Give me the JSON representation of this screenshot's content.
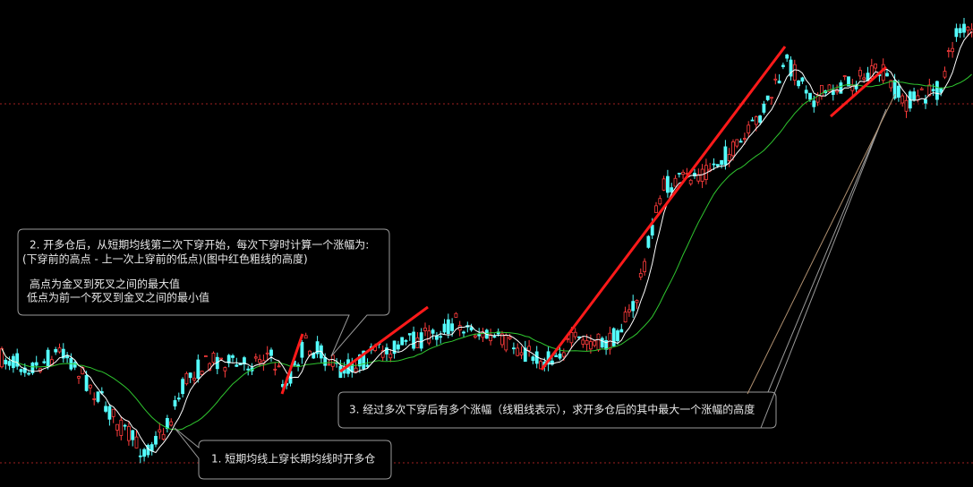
{
  "annotations": [
    {
      "lines": [
        "2. 开多仓后，从短期均线第二次下穿开始，每次下穿时计算一个涨幅为:",
        "(下穿前的高点 - 上一次上穿前的低点)(图中红色粗线的高度)",
        "高点为金叉到死叉之间的最大值",
        " 低点为前一个死叉到金叉之间的最小值"
      ]
    },
    {
      "lines": [
        "3. 经过多次下穿后有多个涨幅（线粗线表示），求开多仓后的其中最大一个涨幅的高度"
      ]
    },
    {
      "lines": [
        "1. 短期均线上穿长期均线时开多仓"
      ]
    }
  ]
}
